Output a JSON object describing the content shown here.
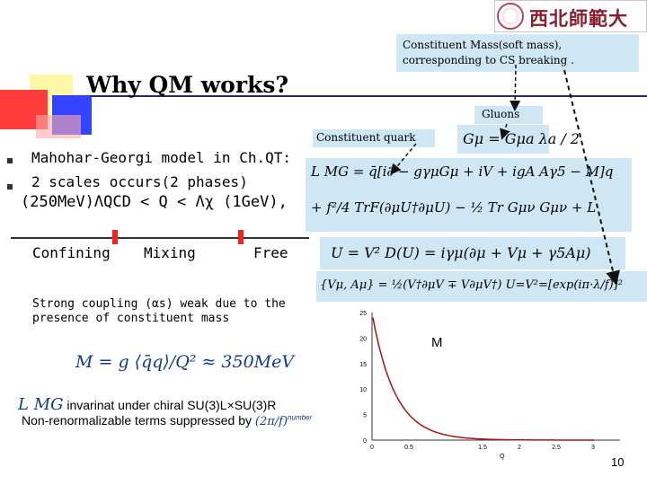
{
  "logo": {
    "text": "西北師範大學"
  },
  "callouts": {
    "constituent_mass": "Constituent Mass(soft mass), corresponding to CS breaking .",
    "gluons": "Gluons",
    "constituent_quark": "Constituent quark"
  },
  "title": "Why QM works?",
  "bullets": [
    "Mahohar-Georgi model in Ch.QT:",
    "2 scales occurs(2 phases)"
  ],
  "scale_line": "(250MeV)ΛQCD < Q < Λχ (1GeV),",
  "phases": [
    "Confining",
    "Mixing",
    "Free"
  ],
  "strong_coupling": [
    "Strong coupling (αs) weak due to the",
    "presence of constituent mass"
  ],
  "mass_equation": "M = g ⟨q̄q⟩/Q² ≈ 350MeV",
  "invariant_line": "invarinat under chiral SU(3)L×SU(3)R",
  "lagrangian_symbol": "L MG",
  "nonrenormalizable_line": "Non-renormalizable terms suppressed by",
  "suppression_factor": "(2π/f)",
  "suppression_superscript": "number",
  "equations": {
    "gluon_field": "Gμ = Gμa λa / 2",
    "lagrangian_line1": "L MG = q̄[i∂ − gγμGμ + iV + igA Aγ5 − M]q",
    "lagrangian_line2": "+ f²/4 TrF(∂μU†∂μU) − ½ Tr Gμν Gμν + L",
    "u_field": "U = V²    D(U) = iγμ(∂μ + Vμ + γ5Aμ)",
    "brace_line": "{Vμ, Aμ} = ½(V†∂μV ∓ V∂μV†)  U=V²=[exp(iπ·λ/f)]²"
  },
  "plot": {
    "label": "M",
    "y_ticks": [
      "25",
      "20",
      "15",
      "10",
      "5",
      "0"
    ],
    "x_ticks": [
      "0",
      "0.5",
      "",
      "1.5",
      "2",
      "2.5",
      "3"
    ],
    "x_label": "Q"
  },
  "page_number": "10",
  "colors": {
    "accent": "#cfe6f4",
    "title_red": "#ff3b3b",
    "title_blue": "#3444ff",
    "curve": "#b01010"
  }
}
